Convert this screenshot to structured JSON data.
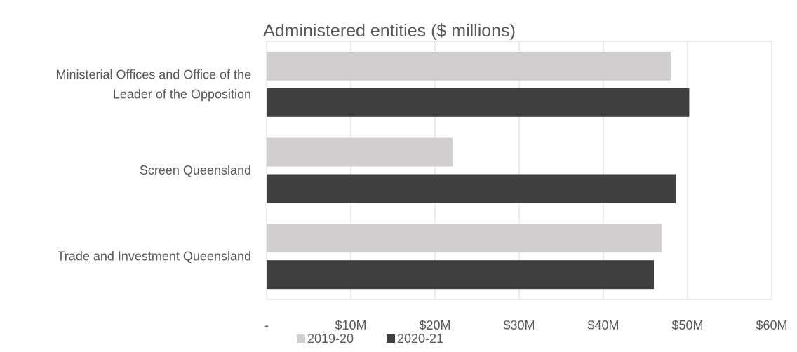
{
  "chart_data": {
    "type": "bar",
    "orientation": "horizontal",
    "title": "Administered entities ($ millions)",
    "xlabel": "",
    "ylabel": "",
    "categories": [
      [
        "Ministerial Offices and Office of the",
        "Leader of the Opposition"
      ],
      [
        "Screen Queensland"
      ],
      [
        "Trade and Investment Queensland"
      ]
    ],
    "series": [
      {
        "name": "2019-20",
        "color": "#d0cecf",
        "values": [
          48.0,
          22.1,
          46.9
        ]
      },
      {
        "name": "2020-21",
        "color": "#404040",
        "values": [
          50.2,
          48.6,
          46.0
        ]
      }
    ],
    "xlim": [
      0,
      60
    ],
    "x_ticks": [
      0,
      10,
      20,
      30,
      40,
      50,
      60
    ],
    "x_tick_labels": [
      "-",
      "$10M",
      "$20M",
      "$30M",
      "$40M",
      "$50M",
      "$60M"
    ],
    "grid": true,
    "legend_position": "bottom"
  }
}
